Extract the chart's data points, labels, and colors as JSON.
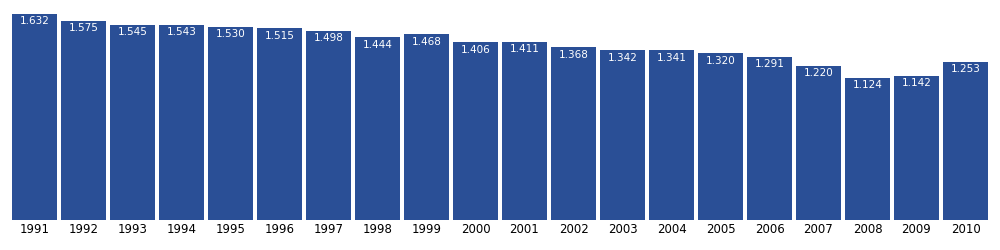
{
  "years": [
    "1991",
    "1992",
    "1993",
    "1994",
    "1995",
    "1996",
    "1997",
    "1998",
    "1999",
    "2000",
    "2001",
    "2002",
    "2003",
    "2004",
    "2005",
    "2006",
    "2007",
    "2008",
    "2009",
    "2010"
  ],
  "values": [
    1632,
    1575,
    1545,
    1543,
    1530,
    1515,
    1498,
    1444,
    1468,
    1406,
    1411,
    1368,
    1342,
    1341,
    1320,
    1291,
    1220,
    1124,
    1142,
    1253
  ],
  "bar_color": "#2a4f96",
  "label_color": "#ffffff",
  "label_fontsize": 7.5,
  "xlabel_fontsize": 8.5,
  "background_color": "#ffffff",
  "ylim": [
    0,
    1720
  ]
}
